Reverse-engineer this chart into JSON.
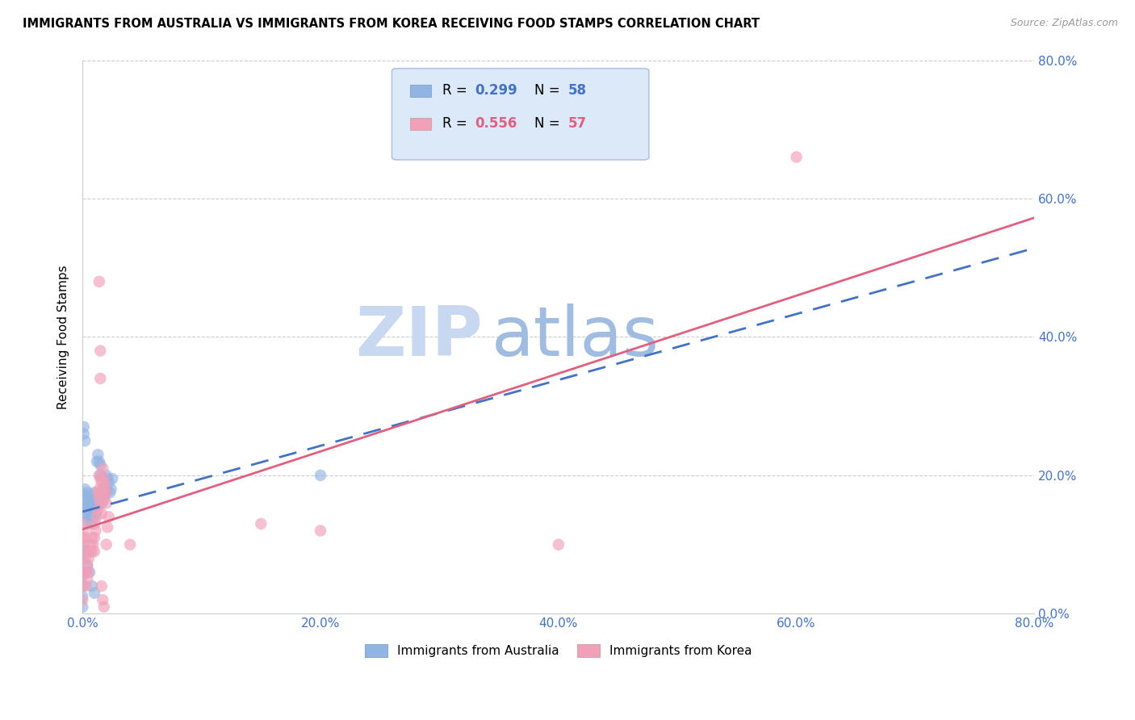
{
  "title": "IMMIGRANTS FROM AUSTRALIA VS IMMIGRANTS FROM KOREA RECEIVING FOOD STAMPS CORRELATION CHART",
  "source": "Source: ZipAtlas.com",
  "ylabel": "Receiving Food Stamps",
  "tick_labels": [
    "0.0%",
    "20.0%",
    "40.0%",
    "60.0%",
    "80.0%"
  ],
  "xlim": [
    0.0,
    0.8
  ],
  "ylim": [
    0.0,
    0.8
  ],
  "australia_R": 0.299,
  "australia_N": 58,
  "korea_R": 0.556,
  "korea_N": 57,
  "australia_color": "#92b4e3",
  "korea_color": "#f0a0b8",
  "australia_line_color": "#4472C4",
  "korea_line_color": "#e06080",
  "legend_box_color": "#dce9f8",
  "tick_label_color": "#4472C4",
  "watermark_zip_color": "#c8d8f0",
  "watermark_atlas_color": "#b0c8e8",
  "australia_scatter": [
    [
      0.0,
      0.175
    ],
    [
      0.0,
      0.16
    ],
    [
      0.0,
      0.14
    ],
    [
      0.0,
      0.095
    ],
    [
      0.0,
      0.08
    ],
    [
      0.0,
      0.055
    ],
    [
      0.0,
      0.04
    ],
    [
      0.0,
      0.025
    ],
    [
      0.0,
      0.01
    ],
    [
      0.002,
      0.18
    ],
    [
      0.002,
      0.165
    ],
    [
      0.003,
      0.155
    ],
    [
      0.003,
      0.145
    ],
    [
      0.004,
      0.135
    ],
    [
      0.005,
      0.175
    ],
    [
      0.005,
      0.15
    ],
    [
      0.006,
      0.165
    ],
    [
      0.006,
      0.14
    ],
    [
      0.007,
      0.13
    ],
    [
      0.007,
      0.155
    ],
    [
      0.008,
      0.17
    ],
    [
      0.008,
      0.15
    ],
    [
      0.009,
      0.16
    ],
    [
      0.009,
      0.14
    ],
    [
      0.01,
      0.155
    ],
    [
      0.01,
      0.175
    ],
    [
      0.01,
      0.14
    ],
    [
      0.011,
      0.165
    ],
    [
      0.011,
      0.145
    ],
    [
      0.012,
      0.155
    ],
    [
      0.012,
      0.22
    ],
    [
      0.013,
      0.23
    ],
    [
      0.014,
      0.22
    ],
    [
      0.015,
      0.215
    ],
    [
      0.015,
      0.2
    ],
    [
      0.016,
      0.175
    ],
    [
      0.016,
      0.16
    ],
    [
      0.017,
      0.17
    ],
    [
      0.018,
      0.165
    ],
    [
      0.018,
      0.18
    ],
    [
      0.019,
      0.175
    ],
    [
      0.02,
      0.18
    ],
    [
      0.02,
      0.2
    ],
    [
      0.02,
      0.175
    ],
    [
      0.021,
      0.195
    ],
    [
      0.022,
      0.19
    ],
    [
      0.023,
      0.175
    ],
    [
      0.024,
      0.18
    ],
    [
      0.001,
      0.26
    ],
    [
      0.002,
      0.25
    ],
    [
      0.001,
      0.27
    ],
    [
      0.004,
      0.07
    ],
    [
      0.006,
      0.06
    ],
    [
      0.008,
      0.04
    ],
    [
      0.01,
      0.03
    ],
    [
      0.003,
      0.09
    ],
    [
      0.025,
      0.195
    ],
    [
      0.2,
      0.2
    ]
  ],
  "korea_scatter": [
    [
      0.0,
      0.13
    ],
    [
      0.0,
      0.11
    ],
    [
      0.0,
      0.09
    ],
    [
      0.0,
      0.06
    ],
    [
      0.0,
      0.04
    ],
    [
      0.0,
      0.02
    ],
    [
      0.001,
      0.12
    ],
    [
      0.001,
      0.1
    ],
    [
      0.002,
      0.11
    ],
    [
      0.002,
      0.08
    ],
    [
      0.003,
      0.06
    ],
    [
      0.003,
      0.04
    ],
    [
      0.004,
      0.07
    ],
    [
      0.004,
      0.05
    ],
    [
      0.005,
      0.08
    ],
    [
      0.005,
      0.06
    ],
    [
      0.006,
      0.09
    ],
    [
      0.007,
      0.1
    ],
    [
      0.008,
      0.11
    ],
    [
      0.008,
      0.09
    ],
    [
      0.009,
      0.1
    ],
    [
      0.01,
      0.11
    ],
    [
      0.01,
      0.13
    ],
    [
      0.011,
      0.12
    ],
    [
      0.012,
      0.14
    ],
    [
      0.013,
      0.15
    ],
    [
      0.013,
      0.175
    ],
    [
      0.014,
      0.165
    ],
    [
      0.014,
      0.2
    ],
    [
      0.014,
      0.18
    ],
    [
      0.015,
      0.195
    ],
    [
      0.015,
      0.17
    ],
    [
      0.015,
      0.34
    ],
    [
      0.015,
      0.38
    ],
    [
      0.016,
      0.19
    ],
    [
      0.016,
      0.16
    ],
    [
      0.016,
      0.145
    ],
    [
      0.017,
      0.18
    ],
    [
      0.017,
      0.21
    ],
    [
      0.018,
      0.195
    ],
    [
      0.018,
      0.17
    ],
    [
      0.019,
      0.185
    ],
    [
      0.02,
      0.175
    ],
    [
      0.02,
      0.16
    ],
    [
      0.021,
      0.125
    ],
    [
      0.022,
      0.14
    ],
    [
      0.02,
      0.1
    ],
    [
      0.04,
      0.1
    ],
    [
      0.016,
      0.04
    ],
    [
      0.017,
      0.02
    ],
    [
      0.018,
      0.01
    ],
    [
      0.6,
      0.66
    ],
    [
      0.4,
      0.1
    ],
    [
      0.15,
      0.13
    ],
    [
      0.2,
      0.12
    ],
    [
      0.014,
      0.48
    ],
    [
      0.01,
      0.09
    ]
  ]
}
